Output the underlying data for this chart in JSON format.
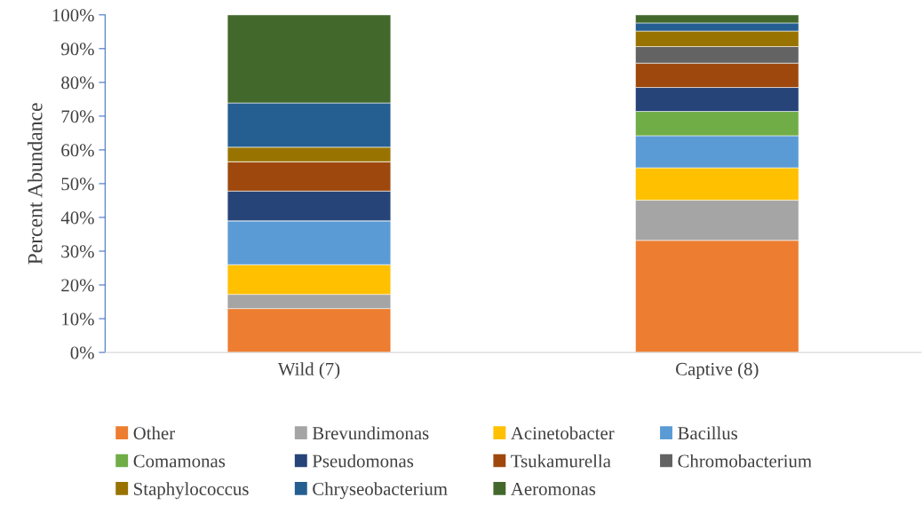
{
  "chart_data": {
    "type": "bar",
    "stacked": true,
    "ylabel": "Percent Abundance",
    "categories": [
      "Wild (7)",
      "Captive (8)"
    ],
    "ylim": [
      0,
      100
    ],
    "yticks": [
      {
        "value": 0,
        "label": "0%"
      },
      {
        "value": 10,
        "label": "10%"
      },
      {
        "value": 20,
        "label": "20%"
      },
      {
        "value": 30,
        "label": "30%"
      },
      {
        "value": 40,
        "label": "40%"
      },
      {
        "value": 50,
        "label": "50%"
      },
      {
        "value": 60,
        "label": "60%"
      },
      {
        "value": 70,
        "label": "70%"
      },
      {
        "value": 80,
        "label": "80%"
      },
      {
        "value": 90,
        "label": "90%"
      },
      {
        "value": 100,
        "label": "100%"
      }
    ],
    "grid": false,
    "legend": "bottom",
    "series": [
      {
        "name": "Other",
        "color": "#ed7d31",
        "values": [
          13.0,
          33.2
        ]
      },
      {
        "name": "Brevundimonas",
        "color": "#a5a5a5",
        "values": [
          4.2,
          11.9
        ]
      },
      {
        "name": "Acinetobacter",
        "color": "#ffc000",
        "values": [
          8.8,
          9.6
        ]
      },
      {
        "name": "Bacillus",
        "color": "#5b9bd5",
        "values": [
          13.0,
          9.5
        ]
      },
      {
        "name": "Comamonas",
        "color": "#70ad47",
        "values": [
          0,
          7.2
        ]
      },
      {
        "name": "Pseudomonas",
        "color": "#264478",
        "values": [
          8.8,
          7.1
        ]
      },
      {
        "name": "Tsukamurella",
        "color": "#9e480e",
        "values": [
          8.7,
          7.2
        ]
      },
      {
        "name": "Chromobacterium",
        "color": "#636363",
        "values": [
          0,
          4.9
        ]
      },
      {
        "name": "Staphylococcus",
        "color": "#997300",
        "values": [
          4.3,
          4.6
        ]
      },
      {
        "name": "Chryseobacterium",
        "color": "#255e91",
        "values": [
          13.1,
          2.4
        ]
      },
      {
        "name": "Aeromonas",
        "color": "#43682b",
        "values": [
          26.1,
          2.4
        ]
      }
    ]
  }
}
